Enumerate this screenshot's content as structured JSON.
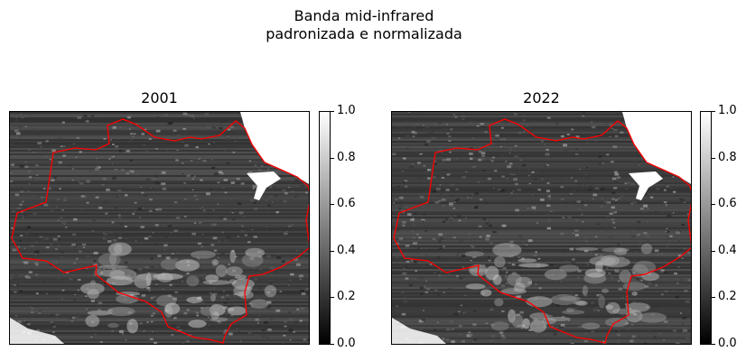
{
  "figure": {
    "title_line1": "Banda mid-infrared",
    "title_line2": "padronizada e normalizada"
  },
  "panels": [
    {
      "title": "2001",
      "image": "satellite-raster-2001"
    },
    {
      "title": "2022",
      "image": "satellite-raster-2022"
    }
  ],
  "colorbar": {
    "ticks": [
      "0.0",
      "0.2",
      "0.4",
      "0.6",
      "0.8",
      "1.0"
    ],
    "cmap": [
      "#000000",
      "#ffffff"
    ]
  },
  "colors": {
    "boundary": "#ff0000"
  }
}
